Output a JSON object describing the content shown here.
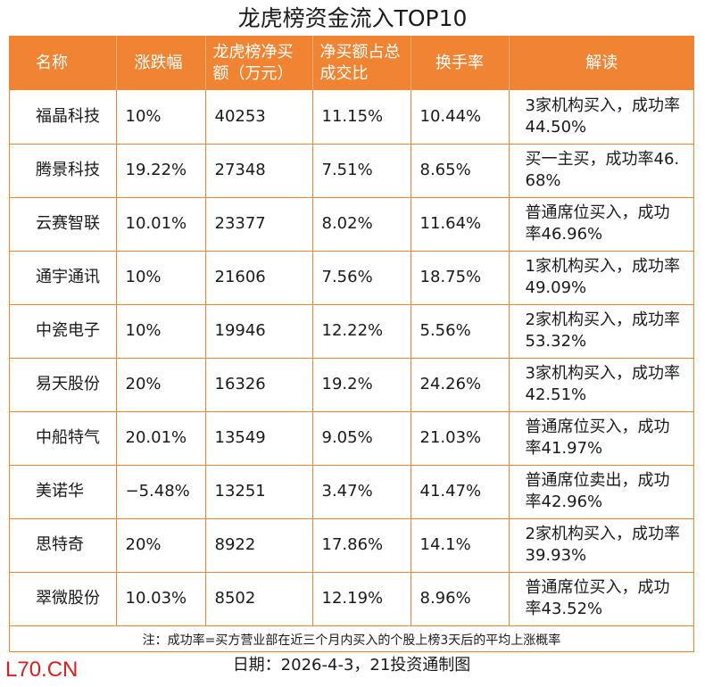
{
  "title": "龙虎榜资金流入TOP10",
  "columns": [
    "名称",
    "涨跌幅",
    "龙虎榜净买额（万元）",
    "净买额占总成交比",
    "换手率",
    "解读"
  ],
  "rows": [
    {
      "name": "福晶科技",
      "change": "10%",
      "net_buy": "40253",
      "ratio": "11.15%",
      "turnover": "10.44%",
      "note": "3家机构买入，成功率44.50%"
    },
    {
      "name": "腾景科技",
      "change": "19.22%",
      "net_buy": "27348",
      "ratio": "7.51%",
      "turnover": "8.65%",
      "note": "买一主买，成功率46.68%"
    },
    {
      "name": "云赛智联",
      "change": "10.01%",
      "net_buy": "23377",
      "ratio": "8.02%",
      "turnover": "11.64%",
      "note": "普通席位买入，成功率46.96%"
    },
    {
      "name": "通宇通讯",
      "change": "10%",
      "net_buy": "21606",
      "ratio": "7.56%",
      "turnover": "18.75%",
      "note": "1家机构买入，成功率49.09%"
    },
    {
      "name": "中瓷电子",
      "change": "10%",
      "net_buy": "19946",
      "ratio": "12.22%",
      "turnover": "5.56%",
      "note": "2家机构买入，成功率53.32%"
    },
    {
      "name": "易天股份",
      "change": "20%",
      "net_buy": "16326",
      "ratio": "19.2%",
      "turnover": "24.26%",
      "note": "3家机构买入，成功率42.51%"
    },
    {
      "name": "中船特气",
      "change": "20.01%",
      "net_buy": "13549",
      "ratio": "9.05%",
      "turnover": "21.03%",
      "note": "普通席位买入，成功率41.97%"
    },
    {
      "name": "美诺华",
      "change": "−5.48%",
      "net_buy": "13251",
      "ratio": "3.47%",
      "turnover": "41.47%",
      "note": "普通席位卖出，成功率42.96%"
    },
    {
      "name": "思特奇",
      "change": "20%",
      "net_buy": "8922",
      "ratio": "17.86%",
      "turnover": "14.1%",
      "note": "2家机构买入，成功率39.93%"
    },
    {
      "name": "翠微股份",
      "change": "10.03%",
      "net_buy": "8502",
      "ratio": "12.19%",
      "turnover": "8.96%",
      "note": "普通席位买入，成功率43.52%"
    }
  ],
  "footnote": "注：成功率=买方营业部在近三个月内买入的个股上榜3天后的平均上涨概率",
  "date_line": "日期：2026-4-3，21投资通制图",
  "watermark": "L70.CN",
  "colors": {
    "header_bg": "#f08433",
    "border": "#f08433",
    "watermark": "#d9201f"
  }
}
